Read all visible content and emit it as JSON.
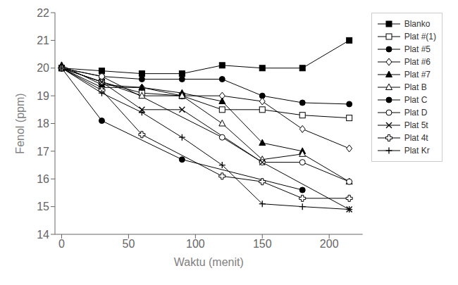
{
  "chart_data": {
    "type": "line",
    "xlabel": "Waktu (menit)",
    "ylabel": "Fenol (ppm)",
    "x": [
      0,
      30,
      60,
      90,
      120,
      150,
      180,
      215
    ],
    "xlim": [
      -5,
      225
    ],
    "ylim": [
      14,
      22
    ],
    "xticks": [
      0,
      50,
      100,
      150,
      200
    ],
    "yticks": [
      14,
      15,
      16,
      17,
      18,
      19,
      20,
      21,
      22
    ],
    "grid": false,
    "legend": "right",
    "series": [
      {
        "name": "Blanko",
        "color": "black",
        "marker": "square",
        "values": [
          20,
          19.9,
          19.8,
          19.8,
          20.1,
          20.0,
          20.0,
          21.0
        ]
      },
      {
        "name": "Plat #(1)",
        "color": "black",
        "marker": "square_open",
        "values": [
          20,
          19.5,
          19.1,
          19.0,
          18.5,
          18.5,
          18.3,
          18.2
        ]
      },
      {
        "name": "Plat #5",
        "color": "black",
        "marker": "circle",
        "values": [
          20,
          19.7,
          19.6,
          19.6,
          19.6,
          19.0,
          18.75,
          18.7
        ]
      },
      {
        "name": "Plat #6",
        "color": "black",
        "marker": "diamond_open",
        "values": [
          20,
          19.3,
          19.3,
          19.0,
          19.0,
          18.8,
          17.8,
          17.1
        ]
      },
      {
        "name": "Plat #7",
        "color": "black",
        "marker": "triangle",
        "values": [
          20.1,
          19.4,
          19.3,
          19.1,
          18.8,
          17.3,
          17.0,
          null
        ]
      },
      {
        "name": "Plat B",
        "color": "black",
        "marker": "triangle_open",
        "values": [
          20,
          19.5,
          19.0,
          19.0,
          18.0,
          16.7,
          16.9,
          15.9
        ]
      },
      {
        "name": "Plat C",
        "color": "black",
        "marker": "circle",
        "values": [
          20,
          18.1,
          null,
          16.7,
          null,
          null,
          15.6,
          null
        ]
      },
      {
        "name": "Plat D",
        "color": "black",
        "marker": "circle_open",
        "values": [
          20,
          19.7,
          null,
          null,
          17.5,
          16.6,
          16.6,
          15.9
        ]
      },
      {
        "name": "Plat 5t",
        "color": "black",
        "marker": "x",
        "values": [
          20,
          19.5,
          18.5,
          18.5,
          null,
          16.6,
          null,
          14.9
        ]
      },
      {
        "name": "Plat 4t",
        "color": "black",
        "marker": "plus_open",
        "values": [
          20,
          19.2,
          17.6,
          null,
          16.1,
          15.9,
          15.3,
          15.3
        ]
      },
      {
        "name": "Plat Kr",
        "color": "black",
        "marker": "plus",
        "values": [
          20,
          19.1,
          18.4,
          17.5,
          16.5,
          15.1,
          15.0,
          14.9
        ]
      }
    ]
  }
}
